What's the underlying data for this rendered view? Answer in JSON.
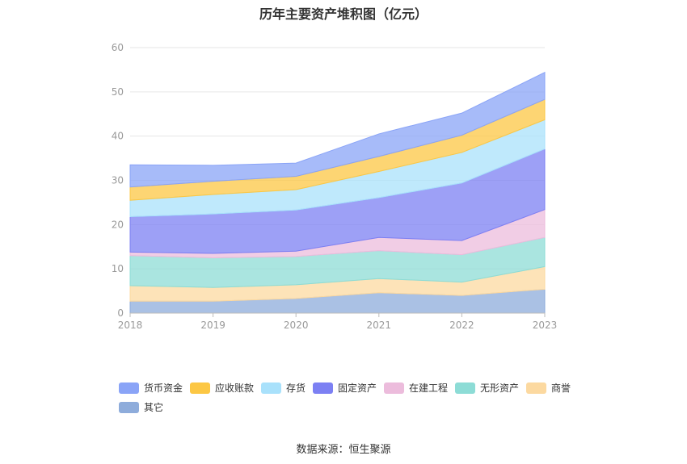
{
  "chart_data": {
    "type": "area",
    "stacked": true,
    "title": "历年主要资产堆积图（亿元）",
    "x": [
      "2018",
      "2019",
      "2020",
      "2021",
      "2022",
      "2023"
    ],
    "ylim": [
      0,
      60
    ],
    "yticks": [
      0,
      10,
      20,
      30,
      40,
      50,
      60
    ],
    "grid": true,
    "legend_position": "bottom",
    "series": [
      {
        "name": "其它",
        "color": "#8eacdb",
        "values": [
          2.7,
          2.7,
          3.3,
          4.6,
          4.0,
          5.4
        ]
      },
      {
        "name": "商誉",
        "color": "#fcd9a0",
        "values": [
          3.5,
          3.1,
          3.1,
          3.2,
          3.0,
          5.1
        ]
      },
      {
        "name": "无形资产",
        "color": "#8ddcd6",
        "values": [
          6.8,
          6.7,
          6.4,
          6.3,
          6.2,
          6.6
        ]
      },
      {
        "name": "在建工程",
        "color": "#ecbcdc",
        "values": [
          0.8,
          1.0,
          1.2,
          3.0,
          3.2,
          6.3
        ]
      },
      {
        "name": "固定资产",
        "color": "#7c80f3",
        "values": [
          8.0,
          8.9,
          9.3,
          9.0,
          13.0,
          13.7
        ]
      },
      {
        "name": "存货",
        "color": "#a9e1fb",
        "values": [
          3.7,
          4.4,
          4.6,
          5.9,
          6.9,
          6.6
        ]
      },
      {
        "name": "应收账款",
        "color": "#fcc744",
        "values": [
          3.0,
          3.0,
          3.0,
          3.4,
          3.9,
          4.6
        ]
      },
      {
        "name": "货币资金",
        "color": "#8aa4f7",
        "values": [
          5.0,
          3.6,
          3.0,
          5.1,
          5.0,
          6.1
        ]
      }
    ],
    "legend_order": [
      "货币资金",
      "应收账款",
      "存货",
      "固定资产",
      "在建工程",
      "无形资产",
      "商誉",
      "其它"
    ]
  },
  "source_note": "数据来源：恒生聚源"
}
